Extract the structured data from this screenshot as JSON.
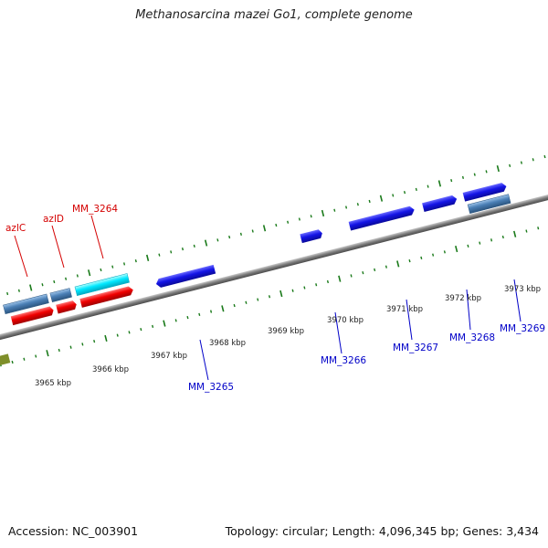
{
  "title": "Methanosarcina mazei Go1, complete genome",
  "footer": {
    "accession": "Accession: NC_003901",
    "summary": "Topology: circular; Length: 4,096,345 bp; Genes: 3,434"
  },
  "colors": {
    "backbone": "#8a8a8a",
    "tick": "#1a7a1a",
    "label_red": "#d40000",
    "label_blue": "#0000c8",
    "gene_blue": "#1010e0",
    "gene_red": "#f00000",
    "gene_cyan": "#00e8ff",
    "gene_steel": "#4a7fb5"
  },
  "axis": {
    "kbp_labels": [
      "3965 kbp",
      "3966 kbp",
      "3967 kbp",
      "3968 kbp",
      "3969 kbp",
      "3970 kbp",
      "3971 kbp",
      "3972 kbp",
      "3973 kbp"
    ]
  },
  "gene_labels": {
    "azlC": "azlC",
    "azlD": "azlD",
    "MM_3264": "MM_3264",
    "MM_3265": "MM_3265",
    "MM_3266": "MM_3266",
    "MM_3267": "MM_3267",
    "MM_3268": "MM_3268",
    "MM_3269": "MM_3269"
  }
}
